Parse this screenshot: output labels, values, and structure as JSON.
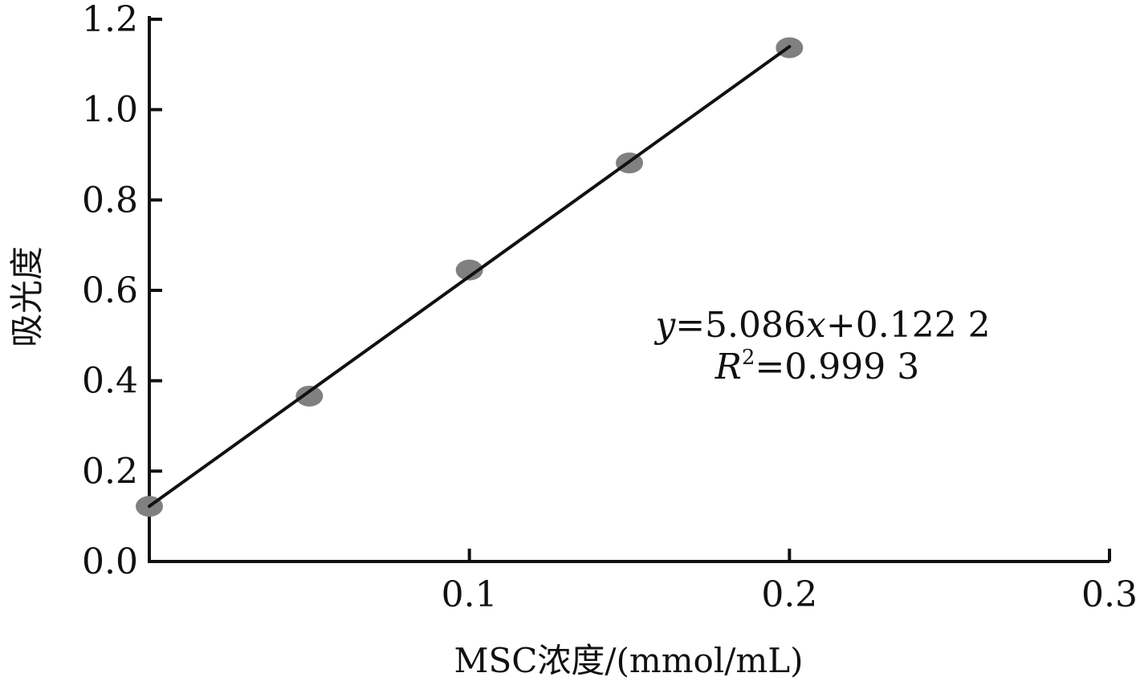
{
  "chart_data": {
    "type": "scatter",
    "title": "",
    "xlabel": "MSC浓度/(mmol/mL)",
    "ylabel": "吸光度",
    "xlim": [
      0,
      0.3
    ],
    "ylim": [
      0,
      1.2
    ],
    "x_ticks": [
      {
        "value": 0.1,
        "label": "0.1"
      },
      {
        "value": 0.2,
        "label": "0.2"
      },
      {
        "value": 0.3,
        "label": "0.3"
      }
    ],
    "y_ticks": [
      {
        "value": 0.0,
        "label": "0.0"
      },
      {
        "value": 0.2,
        "label": "0.2"
      },
      {
        "value": 0.4,
        "label": "0.4"
      },
      {
        "value": 0.6,
        "label": "0.6"
      },
      {
        "value": 0.8,
        "label": "0.8"
      },
      {
        "value": 1.0,
        "label": "1.0"
      },
      {
        "value": 1.2,
        "label": "1.2"
      }
    ],
    "series": [
      {
        "x": [
          0.0,
          0.05,
          0.1,
          0.15,
          0.2
        ],
        "y": [
          0.122,
          0.366,
          0.645,
          0.882,
          1.137
        ],
        "color": "#808080"
      }
    ],
    "fit_line": {
      "slope": 5.086,
      "intercept": 0.1222,
      "x_range": [
        0.0,
        0.2
      ],
      "color": "#111111"
    },
    "annotation": {
      "equation": {
        "y": "y",
        "rest1": "=5.086",
        "x": "x",
        "rest2": "+0.122 2"
      },
      "r2": {
        "R": "R",
        "sup": "2",
        "rest": "=0.999 3"
      }
    },
    "grid": false,
    "legend": "none"
  }
}
